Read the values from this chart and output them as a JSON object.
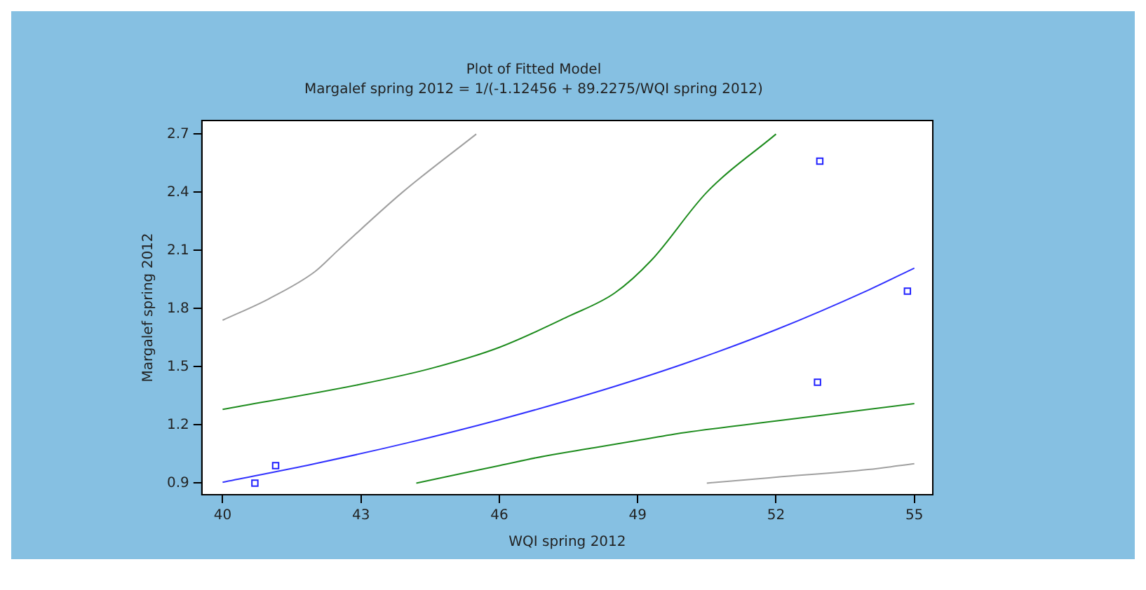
{
  "chart_data": {
    "type": "line",
    "title": "Plot of Fitted Model",
    "subtitle": "Margalef spring 2012 = 1/(-1.12456 + 89.2275/WQI spring 2012)",
    "xlabel": "WQI spring 2012",
    "ylabel": "Margalef spring 2012",
    "xlim": [
      39.55,
      55.4
    ],
    "xticks": [
      40,
      43,
      46,
      49,
      52,
      55
    ],
    "ylim": [
      0.84,
      2.77
    ],
    "yticks": [
      0.9,
      1.2,
      1.5,
      1.8,
      2.1,
      2.4,
      2.7
    ],
    "grid": false,
    "legend": false,
    "series": [
      {
        "color": "#a0a0a0",
        "marker": "none",
        "x": [
          40,
          41,
          42,
          42.5,
          43.9,
          45.5
        ],
        "values": [
          1.74,
          1.85,
          1.99,
          2.1,
          2.4,
          2.7
        ]
      },
      {
        "color": "#1e8c1e",
        "marker": "none",
        "x": [
          40,
          43,
          44.5,
          46,
          47.5,
          48.5,
          49.3,
          50.5,
          52
        ],
        "values": [
          1.28,
          1.41,
          1.49,
          1.6,
          1.76,
          1.88,
          2.05,
          2.4,
          2.7
        ]
      },
      {
        "color": "#3232ff",
        "marker": "none",
        "x": [
          40,
          42,
          44,
          46,
          48,
          50,
          52,
          54,
          55
        ],
        "values": [
          0.904,
          1.0,
          1.107,
          1.227,
          1.362,
          1.515,
          1.691,
          1.895,
          2.009
        ]
      },
      {
        "color": "#1e8c1e",
        "marker": "none",
        "x": [
          44.2,
          46,
          47,
          48,
          49,
          50,
          52,
          54,
          55
        ],
        "values": [
          0.9,
          0.99,
          1.04,
          1.08,
          1.12,
          1.16,
          1.22,
          1.28,
          1.31
        ]
      },
      {
        "color": "#a0a0a0",
        "marker": "none",
        "x": [
          50.5,
          52,
          54,
          55
        ],
        "values": [
          0.9,
          0.93,
          0.97,
          1.0
        ]
      },
      {
        "type": "scatter",
        "color": "#2020ff",
        "marker": "square",
        "x": [
          40.7,
          41.15,
          52.9,
          52.95,
          54.85
        ],
        "values": [
          0.9,
          0.99,
          1.42,
          2.56,
          1.89
        ]
      }
    ]
  }
}
